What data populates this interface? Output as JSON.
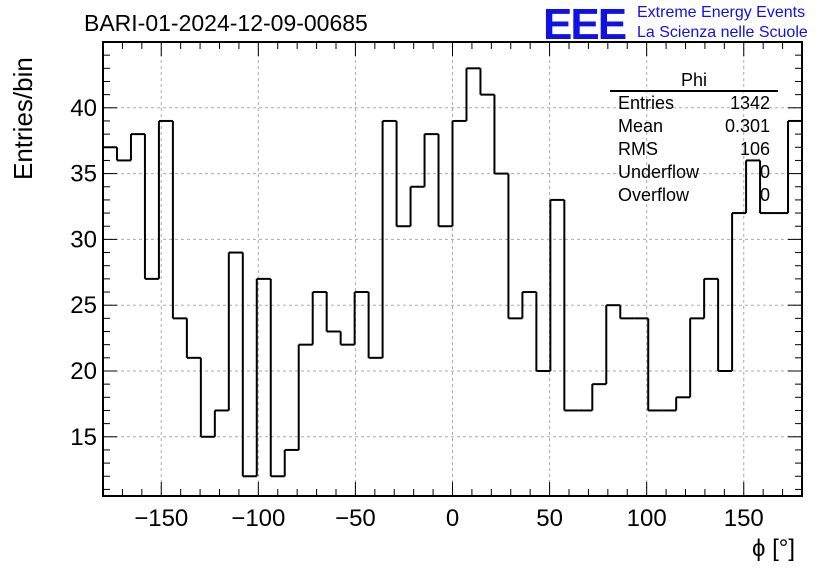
{
  "title": "BARI-01-2024-12-09-00685",
  "logo": {
    "text": "EEE",
    "line1": "Extreme Energy Events",
    "line2": "La Scienza nelle Scuole",
    "color": "#1010e8"
  },
  "stats": {
    "name": "Phi",
    "rows": [
      {
        "label": "Entries",
        "value": "1342"
      },
      {
        "label": "Mean",
        "value": "0.301"
      },
      {
        "label": "RMS",
        "value": "106"
      },
      {
        "label": "Underflow",
        "value": "0"
      },
      {
        "label": "Overflow",
        "value": "0"
      }
    ]
  },
  "chart_data": {
    "type": "histogram",
    "xlabel": "ϕ [°]",
    "ylabel": "Entries/bin",
    "xlim": [
      -180,
      180
    ],
    "ylim": [
      10.5,
      45
    ],
    "grid": true,
    "line_color": "#000000",
    "grid_color": "#aaaaaa",
    "bin_width": 7.2,
    "bin_edges_start": -180,
    "values": [
      37,
      36,
      38,
      27,
      39,
      24,
      21,
      15,
      17,
      29,
      12,
      27,
      12,
      14,
      22,
      26,
      23,
      22,
      26,
      21,
      39,
      31,
      34,
      38,
      31,
      39,
      43,
      41,
      35,
      24,
      26,
      20,
      33,
      17,
      17,
      19,
      25,
      24,
      24,
      17,
      17,
      18,
      24,
      27,
      20,
      32,
      36,
      32,
      32,
      39
    ],
    "x_ticks": [
      -150,
      -100,
      -50,
      0,
      50,
      100,
      150
    ],
    "x_tick_labels": [
      "−150",
      "−100",
      "−50",
      "0",
      "50",
      "100",
      "150"
    ],
    "y_ticks": [
      15,
      20,
      25,
      30,
      35,
      40
    ],
    "y_tick_labels": [
      "15",
      "20",
      "25",
      "30",
      "35",
      "40"
    ]
  }
}
